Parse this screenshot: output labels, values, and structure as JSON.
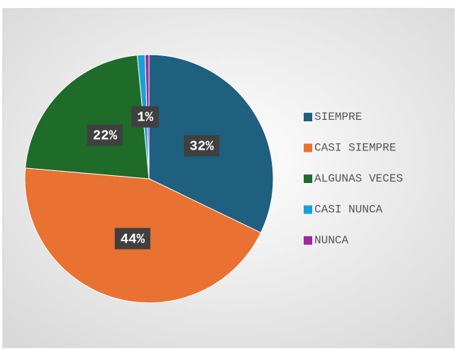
{
  "chart_data": {
    "type": "pie",
    "categories": [
      "SIEMPRE",
      "CASI SIEMPRE",
      "ALGUNAS VECES",
      "CASI NUNCA",
      "NUNCA"
    ],
    "values": [
      32,
      44,
      22,
      1,
      0.5
    ],
    "value_labels": [
      "32%",
      "44%",
      "22%",
      "1%",
      null
    ],
    "colors": [
      "#1f5f80",
      "#e97132",
      "#1e6b2a",
      "#1aa0d8",
      "#a0289a"
    ],
    "legend": "right"
  }
}
